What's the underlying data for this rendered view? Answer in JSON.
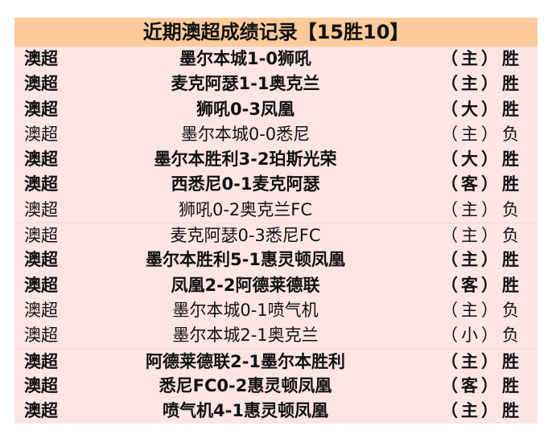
{
  "title": "近期澳超成绩记录【15胜10】",
  "rows": [
    {
      "league": "澳超",
      "match": "墨尔本城1-0狮吼",
      "venue": "（主）",
      "result": "胜"
    },
    {
      "league": "澳超",
      "match": "麦克阿瑟1-1奥克兰",
      "venue": "（主）",
      "result": "胜"
    },
    {
      "league": "澳超",
      "match": "狮吼0-3凤凰",
      "venue": "（大）",
      "result": "胜"
    },
    {
      "league": "澳超",
      "match": "墨尔本城0-0悉尼",
      "venue": "（主）",
      "result": "负"
    },
    {
      "league": "澳超",
      "match": "墨尔本胜利3-2珀斯光荣",
      "venue": "（大）",
      "result": "胜"
    },
    {
      "league": "澳超",
      "match": "西悉尼0-1麦克阿瑟",
      "venue": "（客）",
      "result": "胜"
    },
    {
      "league": "澳超",
      "match": "狮吼0-2奥克兰FC",
      "venue": "（主）",
      "result": "负"
    },
    {
      "league": "澳超",
      "match": "麦克阿瑟0-3悉尼FC",
      "venue": "（主）",
      "result": "负"
    },
    {
      "league": "澳超",
      "match": "墨尔本胜利5-1惠灵顿凤凰",
      "venue": "（主）",
      "result": "胜"
    },
    {
      "league": "澳超",
      "match": "凤凰2-2阿德莱德联",
      "venue": "（客）",
      "result": "胜"
    },
    {
      "league": "澳超",
      "match": "墨尔本城0-1喷气机",
      "venue": "（主）",
      "result": "负"
    },
    {
      "league": "澳超",
      "match": "墨尔本城2-1奥克兰",
      "venue": "（小）",
      "result": "负"
    },
    {
      "league": "澳超",
      "match": "阿德莱德联2-1墨尔本胜利",
      "venue": "（主）",
      "result": "胜"
    },
    {
      "league": "澳超",
      "match": "悉尼FC0-2惠灵顿凤凰",
      "venue": "（客）",
      "result": "胜"
    },
    {
      "league": "澳超",
      "match": "喷气机4-1惠灵顿凤凰",
      "venue": "（主）",
      "result": "胜"
    }
  ],
  "colors": {
    "header_bg": "#fdca9b",
    "body_bg": "#fde5e3"
  }
}
